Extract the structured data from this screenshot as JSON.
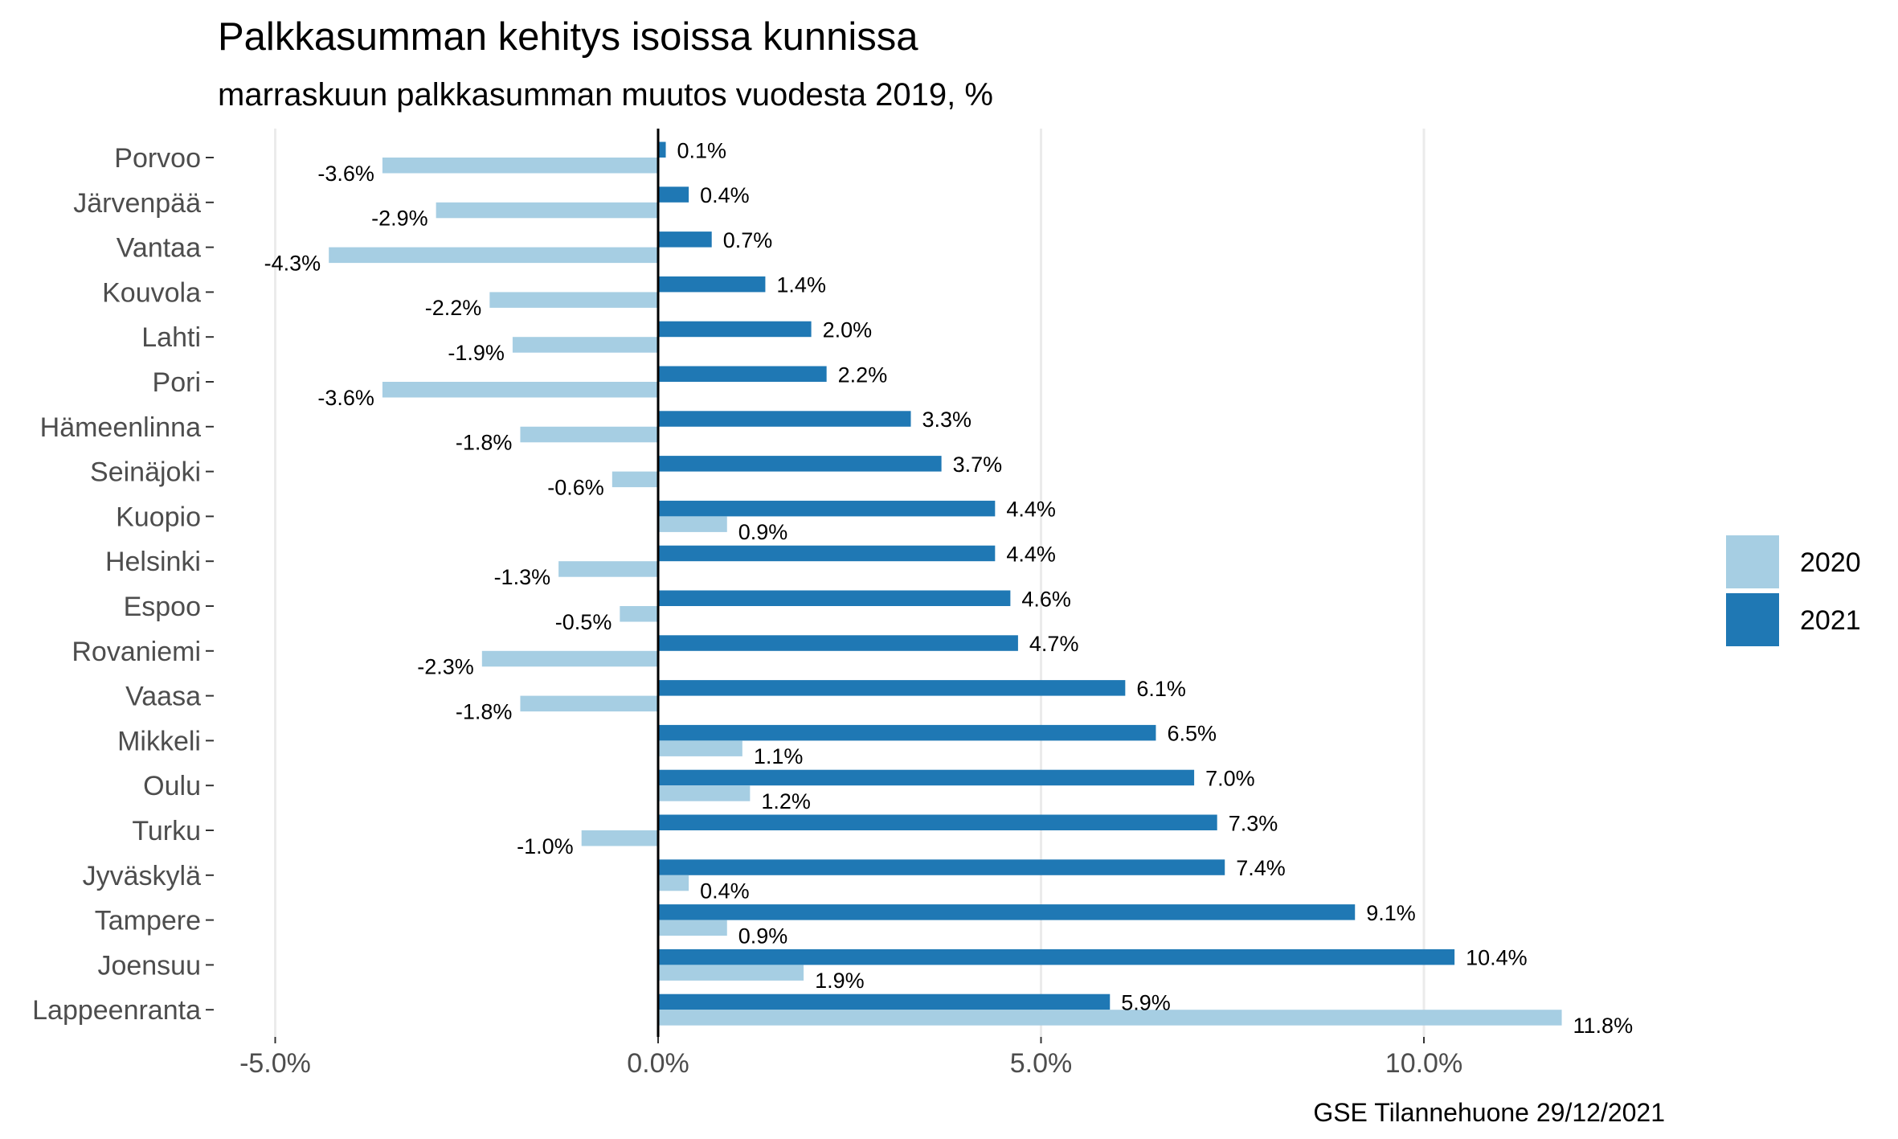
{
  "chart_data": {
    "type": "bar",
    "orientation": "horizontal",
    "title": "Palkkasumman kehitys isoissa kunnissa",
    "subtitle": "marraskuun palkkasumman muutos vuodesta 2019, %",
    "caption": "GSE Tilannehuone 29/12/2021",
    "categories": [
      "Porvoo",
      "Järvenpää",
      "Vantaa",
      "Kouvola",
      "Lahti",
      "Pori",
      "Hämeenlinna",
      "Seinäjoki",
      "Kuopio",
      "Helsinki",
      "Espoo",
      "Rovaniemi",
      "Vaasa",
      "Mikkeli",
      "Oulu",
      "Turku",
      "Jyväskylä",
      "Tampere",
      "Joensuu",
      "Lappeenranta"
    ],
    "series": [
      {
        "name": "2020",
        "color": "#a6cee3",
        "values": [
          -3.6,
          -2.9,
          -4.3,
          -2.2,
          -1.9,
          -3.6,
          -1.8,
          -0.6,
          0.9,
          -1.3,
          -0.5,
          -2.3,
          -1.8,
          1.1,
          1.2,
          -1.0,
          0.4,
          0.9,
          1.9,
          11.8
        ],
        "labels": [
          "-3.6%",
          "-2.9%",
          "-4.3%",
          "-2.2%",
          "-1.9%",
          "-3.6%",
          "-1.8%",
          "-0.6%",
          "0.9%",
          "-1.3%",
          "-0.5%",
          "-2.3%",
          "-1.8%",
          "1.1%",
          "1.2%",
          "-1.0%",
          "0.4%",
          "0.9%",
          "1.9%",
          "11.8%"
        ]
      },
      {
        "name": "2021",
        "color": "#1f78b4",
        "values": [
          0.1,
          0.4,
          0.7,
          1.4,
          2.0,
          2.2,
          3.3,
          3.7,
          4.4,
          4.4,
          4.6,
          4.7,
          6.1,
          6.5,
          7.0,
          7.3,
          7.4,
          9.1,
          10.4,
          5.9
        ],
        "labels": [
          "0.1%",
          "0.4%",
          "0.7%",
          "1.4%",
          "2.0%",
          "2.2%",
          "3.3%",
          "3.7%",
          "4.4%",
          "4.4%",
          "4.6%",
          "4.7%",
          "6.1%",
          "6.5%",
          "7.0%",
          "7.3%",
          "7.4%",
          "9.1%",
          "10.4%",
          "5.9%"
        ]
      }
    ],
    "xticks": [
      -5,
      0,
      5,
      10
    ],
    "xtick_labels": [
      "-5.0%",
      "0.0%",
      "5.0%",
      "10.0%"
    ],
    "xlim": [
      -5.5,
      13.0
    ],
    "grid": "vertical major",
    "legend_position": "right"
  }
}
